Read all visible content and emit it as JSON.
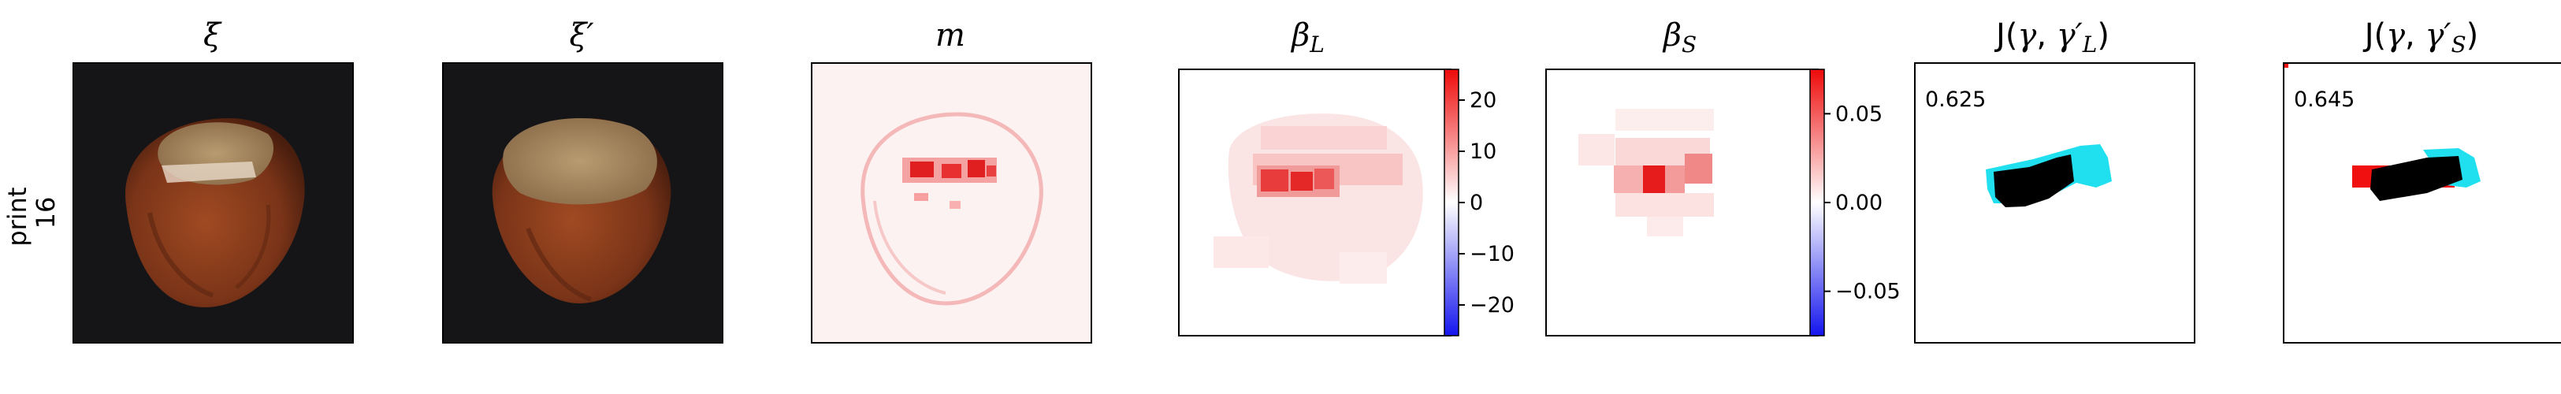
{
  "row_label": "print\n16",
  "row_label_lines": [
    "print",
    "16"
  ],
  "panels": [
    {
      "id": "xi",
      "title": "ξ"
    },
    {
      "id": "xi_prime",
      "title": "ξ′"
    },
    {
      "id": "m",
      "title": "m"
    },
    {
      "id": "beta_L",
      "title": "βL",
      "title_main": "β",
      "title_sub": "L"
    },
    {
      "id": "beta_S",
      "title": "βS",
      "title_main": "β",
      "title_sub": "S"
    },
    {
      "id": "J_L",
      "title": "J(γ, γ′L)",
      "score": "0.625"
    },
    {
      "id": "J_S",
      "title": "J(γ, γ′S)",
      "score": "0.645"
    }
  ],
  "colorbars": [
    {
      "panel": "beta_L",
      "ticks": [
        "20",
        "10",
        "0",
        "−10",
        "−20"
      ],
      "tick_values": [
        20,
        10,
        0,
        -10,
        -20
      ],
      "range": [
        -26,
        26
      ]
    },
    {
      "panel": "beta_S",
      "ticks": [
        "0.05",
        "0.00",
        "−0.05"
      ],
      "tick_values": [
        0.05,
        0.0,
        -0.05
      ],
      "range": [
        -0.075,
        0.075
      ]
    }
  ],
  "colors": {
    "photo_bg": "#151518",
    "nut_shell": "#8a3a1c",
    "nut_cap": "#a08860",
    "heat_red": "#e0141a",
    "heat_blue": "#1a24e8",
    "overlay_cyan": "#20e0f0",
    "overlay_black": "#000000",
    "overlay_red": "#f01010"
  }
}
